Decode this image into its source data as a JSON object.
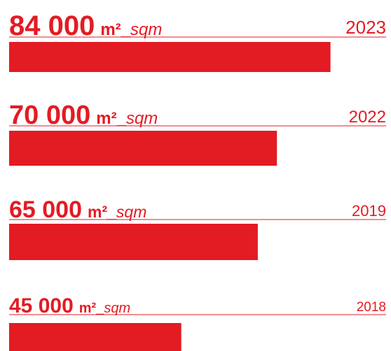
{
  "chart_data": {
    "type": "bar",
    "orientation": "horizontal",
    "categories": [
      "2023",
      "2022",
      "2019",
      "2018"
    ],
    "values": [
      84000,
      70000,
      65000,
      45000
    ],
    "value_labels": [
      "84 000",
      "70 000",
      "65 000",
      "45 000"
    ],
    "unit": "m²",
    "separator": "_",
    "unit_en": "sqm",
    "color": "#e31b23",
    "xlim": [
      0,
      100000
    ]
  }
}
